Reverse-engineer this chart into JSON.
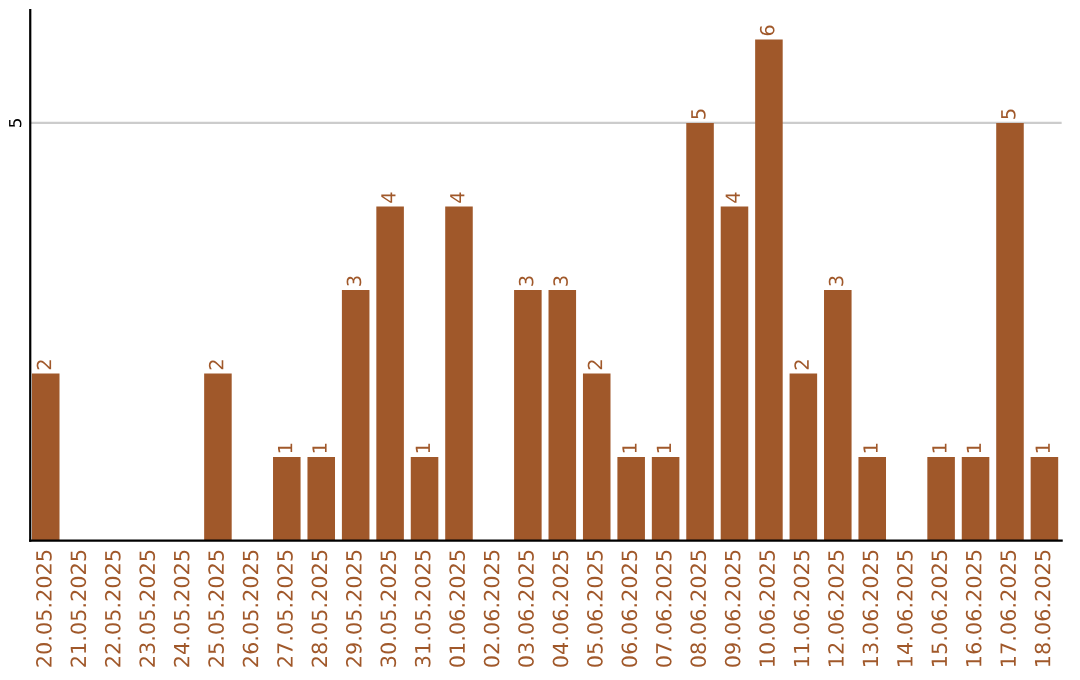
{
  "chart_data": {
    "type": "bar",
    "categories": [
      "20.05.2025",
      "21.05.2025",
      "22.05.2025",
      "23.05.2025",
      "24.05.2025",
      "25.05.2025",
      "26.05.2025",
      "27.05.2025",
      "28.05.2025",
      "29.05.2025",
      "30.05.2025",
      "31.05.2025",
      "01.06.2025",
      "02.06.2025",
      "03.06.2025",
      "04.06.2025",
      "05.06.2025",
      "06.06.2025",
      "07.06.2025",
      "08.06.2025",
      "09.06.2025",
      "10.06.2025",
      "11.06.2025",
      "12.06.2025",
      "13.06.2025",
      "14.06.2025",
      "15.06.2025",
      "16.06.2025",
      "17.06.2025",
      "18.06.2025"
    ],
    "values": [
      2,
      0,
      0,
      0,
      0,
      2,
      0,
      1,
      1,
      3,
      4,
      1,
      4,
      0,
      3,
      3,
      2,
      1,
      1,
      5,
      4,
      6,
      2,
      3,
      1,
      0,
      1,
      1,
      5,
      1
    ],
    "value_labels": [
      "2",
      null,
      null,
      null,
      null,
      "2",
      null,
      "1",
      "1",
      "3",
      "4",
      "1",
      "4",
      null,
      "3",
      "3",
      "2",
      "1",
      "1",
      "5",
      "4",
      "6",
      "2",
      "3",
      "1",
      null,
      "1",
      "1",
      "5",
      "1"
    ],
    "color": "#a0582a",
    "ylim": [
      0,
      6.35
    ],
    "yticks": [
      5
    ],
    "grid": "y"
  }
}
